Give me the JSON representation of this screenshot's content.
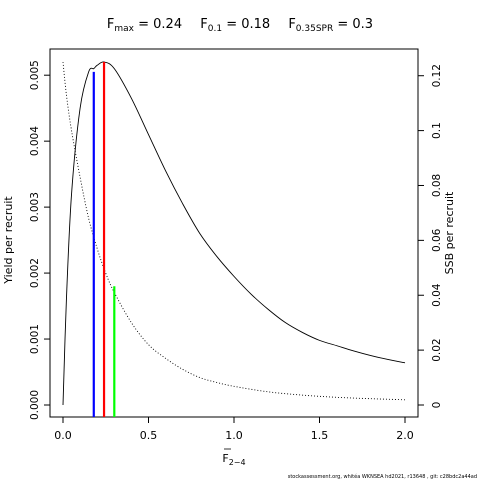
{
  "title": {
    "fmax_text": "F",
    "fmax_sub": "max",
    "fmax_val": " = 0.24",
    "f01_text": "F",
    "f01_sub": "0.1",
    "f01_val": " = 0.18",
    "fspr_text": "F",
    "fspr_sub": "0.35SPR",
    "fspr_val": " = 0.3"
  },
  "footer": "stockassessment.org,  whitéa  WKNSEA  hd2021,  r13648 ,  git:  c28bdc2a44ad",
  "chart_data": {
    "type": "line",
    "xlabel_base": "F",
    "xlabel_sub": "2−4",
    "ylabel_left": "Yield per recruit",
    "ylabel_right": "SSB per recruit",
    "xlim": [
      0,
      2.0
    ],
    "ylim_left": [
      0,
      0.0052
    ],
    "ylim_right": [
      0,
      0.125
    ],
    "x_ticks": [
      "0.0",
      "0.5",
      "1.0",
      "1.5",
      "2.0"
    ],
    "x_tick_values": [
      0,
      0.5,
      1.0,
      1.5,
      2.0
    ],
    "yleft_ticks": [
      "0.000",
      "0.001",
      "0.002",
      "0.003",
      "0.004",
      "0.005"
    ],
    "yleft_tick_values": [
      0,
      0.001,
      0.002,
      0.003,
      0.004,
      0.005
    ],
    "yright_ticks": [
      "0",
      "0.02",
      "0.04",
      "0.06",
      "0.08",
      "0.1",
      "0.12"
    ],
    "yright_tick_values": [
      0,
      0.02,
      0.04,
      0.06,
      0.08,
      0.1,
      0.12
    ],
    "series": [
      {
        "axis": "left",
        "color": "#000000",
        "style": "solid",
        "x": [
          0,
          0.02,
          0.05,
          0.1,
          0.15,
          0.18,
          0.2,
          0.24,
          0.3,
          0.4,
          0.5,
          0.6,
          0.7,
          0.8,
          0.9,
          1.0,
          1.1,
          1.2,
          1.3,
          1.4,
          1.5,
          1.6,
          1.7,
          1.8,
          1.9,
          2.0
        ],
        "y": [
          0,
          0.0016,
          0.0032,
          0.0045,
          0.00505,
          0.0051,
          0.00515,
          0.0052,
          0.0051,
          0.00465,
          0.0041,
          0.00355,
          0.00305,
          0.0026,
          0.00225,
          0.00195,
          0.00168,
          0.00145,
          0.00125,
          0.0011,
          0.00098,
          0.0009,
          0.00082,
          0.00075,
          0.00069,
          0.00064
        ]
      },
      {
        "axis": "right",
        "color": "#000000",
        "style": "dotted",
        "x": [
          0,
          0.02,
          0.05,
          0.1,
          0.15,
          0.2,
          0.25,
          0.3,
          0.4,
          0.5,
          0.6,
          0.7,
          0.8,
          0.9,
          1.0,
          1.2,
          1.4,
          1.6,
          1.8,
          2.0
        ],
        "y": [
          0.125,
          0.113,
          0.1,
          0.083,
          0.068,
          0.057,
          0.048,
          0.041,
          0.03,
          0.022,
          0.017,
          0.013,
          0.01,
          0.0082,
          0.0068,
          0.0048,
          0.0036,
          0.0028,
          0.0023,
          0.0019
        ]
      }
    ],
    "reference_lines": [
      {
        "name": "Fmax",
        "x": 0.24,
        "y_top": 0.0052,
        "axis": "left",
        "color": "#ff0000"
      },
      {
        "name": "F0.1",
        "x": 0.18,
        "y_top": 0.00505,
        "axis": "left",
        "color": "#0000ff"
      },
      {
        "name": "F0.35SPR",
        "x": 0.3,
        "y_top": 0.0018,
        "axis": "left",
        "color": "#00ff00"
      }
    ]
  }
}
